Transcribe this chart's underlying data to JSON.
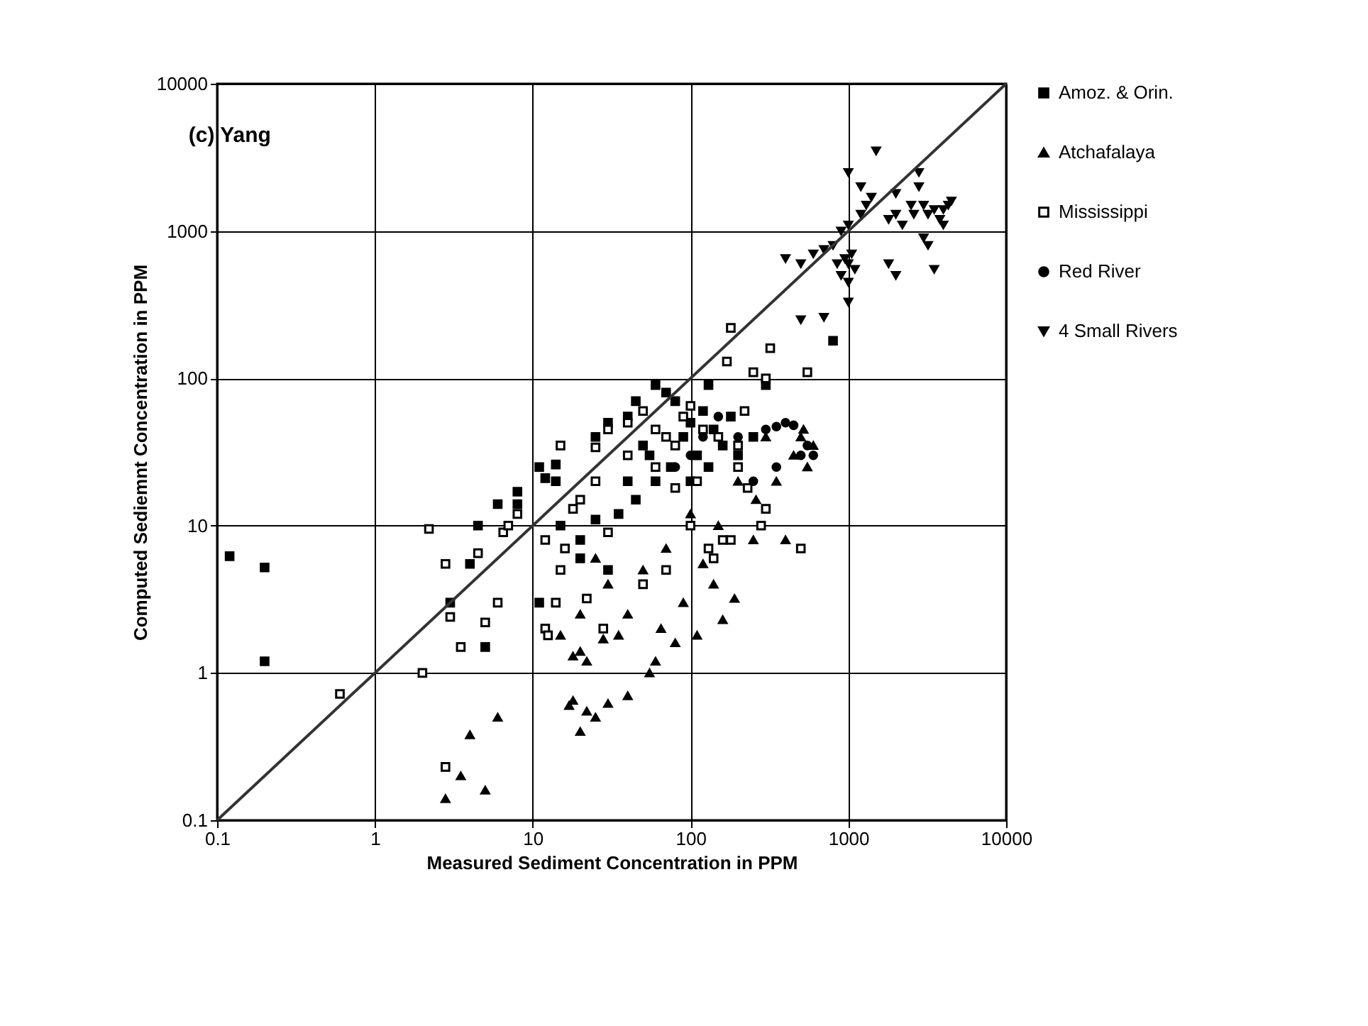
{
  "chart_data": {
    "type": "scatter",
    "title": "(c) Yang",
    "xlabel": "Measured Sediment Concentration in PPM",
    "ylabel": "Computed Sediemnt Concentration in PPM",
    "log": "xy",
    "grid": true,
    "legend": "right",
    "xlim": [
      0.1,
      10000
    ],
    "ylim": [
      0.1,
      10000
    ],
    "xticks": [
      0.1,
      1,
      10,
      100,
      1000,
      10000
    ],
    "yticks": [
      0.1,
      1,
      10,
      100,
      1000,
      10000
    ],
    "series": [
      {
        "name": "Amoz. & Orin.",
        "color": "#000000",
        "marker": "square",
        "x": [
          0.12,
          0.2,
          0.2,
          3,
          4,
          5,
          4.5,
          6,
          8,
          8,
          11,
          12,
          14,
          14,
          25,
          30,
          40,
          45,
          60,
          70,
          80,
          100,
          120,
          140,
          160,
          200,
          90,
          75,
          60,
          45,
          35,
          25,
          20,
          15,
          11,
          20,
          30,
          50,
          110,
          130,
          180,
          250,
          300,
          800,
          130,
          40,
          100,
          55
        ],
        "values": [
          6.2,
          5.2,
          1.2,
          3,
          5.5,
          1.5,
          10,
          14,
          17,
          14,
          25,
          21,
          20,
          26,
          40,
          50,
          55,
          70,
          90,
          80,
          70,
          50,
          60,
          45,
          35,
          30,
          40,
          25,
          20,
          15,
          12,
          11,
          8,
          10,
          3,
          6,
          5,
          35,
          30,
          25,
          55,
          40,
          90,
          180,
          90,
          20,
          20,
          30
        ]
      },
      {
        "name": "Atchafalaya",
        "color": "#000000",
        "marker": "triangle",
        "x": [
          2.8,
          4,
          5,
          6,
          3.5,
          18,
          17,
          22,
          25,
          40,
          20,
          30,
          15,
          18,
          20,
          22,
          28,
          35,
          55,
          60,
          40,
          50,
          65,
          80,
          90,
          120,
          140,
          190,
          250,
          160,
          110,
          70,
          400,
          450,
          500,
          520,
          600,
          550,
          260,
          300,
          350,
          200,
          150,
          100,
          30,
          20,
          25
        ],
        "values": [
          0.14,
          0.38,
          0.16,
          0.5,
          0.2,
          0.65,
          0.6,
          0.55,
          0.5,
          0.7,
          0.4,
          0.62,
          1.8,
          1.3,
          1.4,
          1.2,
          1.7,
          1.8,
          1.0,
          1.2,
          2.5,
          5,
          2,
          1.6,
          3,
          5.5,
          4,
          3.2,
          8,
          2.3,
          1.8,
          7,
          8,
          30,
          40,
          45,
          35,
          25,
          15,
          40,
          20,
          20,
          10,
          12,
          4,
          2.5,
          6
        ]
      },
      {
        "name": "Mississippi",
        "color": "#ffffff",
        "marker": "square",
        "x": [
          0.6,
          2,
          2.2,
          2.8,
          3,
          2.8,
          3.5,
          4.5,
          5,
          6,
          6.5,
          7,
          8,
          12,
          12,
          12.5,
          14,
          15,
          16,
          18,
          20,
          15,
          30,
          25,
          40,
          50,
          60,
          70,
          80,
          90,
          100,
          120,
          150,
          200,
          220,
          170,
          180,
          250,
          320,
          550,
          300,
          200,
          230,
          160,
          180,
          140,
          130,
          100,
          70,
          50,
          30,
          25,
          40,
          60,
          80,
          110,
          500,
          280,
          300,
          28,
          22
        ],
        "values": [
          0.72,
          1.0,
          9.5,
          5.5,
          2.4,
          0.23,
          1.5,
          6.5,
          2.2,
          3,
          9,
          10,
          12,
          8,
          2,
          1.8,
          3,
          5,
          7,
          13,
          15,
          35,
          45,
          34,
          50,
          60,
          45,
          40,
          35,
          55,
          65,
          45,
          40,
          35,
          60,
          130,
          220,
          110,
          160,
          110,
          100,
          25,
          18,
          8,
          8,
          6,
          7,
          10,
          5,
          4,
          9,
          20,
          30,
          25,
          18,
          20,
          7,
          10,
          13,
          2,
          3.2
        ]
      },
      {
        "name": "Red River",
        "color": "#000000",
        "marker": "circle",
        "x": [
          300,
          350,
          400,
          450,
          500,
          550,
          600,
          350,
          250,
          200,
          150,
          120,
          100,
          80
        ],
        "values": [
          45,
          47,
          50,
          48,
          30,
          35,
          30,
          25,
          20,
          40,
          55,
          40,
          30,
          25
        ]
      },
      {
        "name": "4 Small Rivers",
        "color": "#000000",
        "marker": "triangle-down",
        "x": [
          1500,
          1000,
          1200,
          1400,
          1300,
          1000,
          900,
          600,
          700,
          500,
          400,
          800,
          850,
          900,
          1000,
          1100,
          1000,
          950,
          1050,
          1000,
          500,
          700,
          1800,
          2000,
          2500,
          2800,
          3000,
          2600,
          3200,
          3500,
          4000,
          4500,
          3800,
          3000,
          3200,
          2000,
          1800,
          2200,
          3500,
          4000,
          4300,
          2800,
          1200,
          2000
        ],
        "values": [
          3500,
          2500,
          2000,
          1700,
          1500,
          1100,
          1000,
          700,
          750,
          600,
          650,
          800,
          600,
          500,
          450,
          550,
          600,
          650,
          700,
          330,
          250,
          260,
          600,
          500,
          1500,
          2000,
          1500,
          1300,
          1300,
          1400,
          1100,
          1600,
          1200,
          900,
          800,
          1300,
          1200,
          1100,
          550,
          1400,
          1500,
          2500,
          1300,
          1800
        ]
      },
      {
        "type": "line",
        "color": "#333333",
        "x": [
          0.1,
          10000
        ],
        "values": [
          0.1,
          10000
        ]
      }
    ]
  }
}
